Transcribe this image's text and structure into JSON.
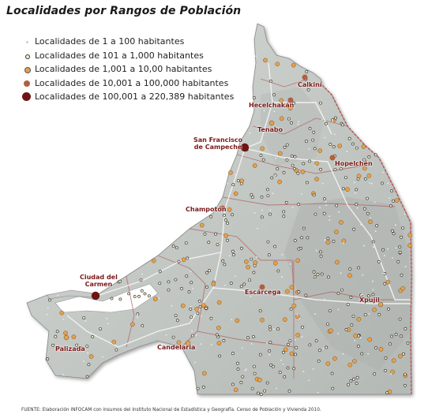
{
  "title": "Localidades por Rangos de Población",
  "legend": [
    {
      "label": "Localidades de 1 a 100 habitantes",
      "color": "#e8e8e8",
      "size": 3
    },
    {
      "label": "Localidades de 101 a 1,000 habitantes",
      "color": "#f2ecd2",
      "size": 4
    },
    {
      "label": "Localidades de 1,001 a 10,00 habitantes",
      "color": "#e8a048",
      "size": 6
    },
    {
      "label": "Localidades de 10,001 a 100,000 habitantes",
      "color": "#b06040",
      "size": 8
    },
    {
      "label": "Localidades de 100,001 a 220,389 habitantes",
      "color": "#6e1414",
      "size": 11
    }
  ],
  "cities": {
    "calkini": "Calkiní",
    "hecelchakan": "Hecelchakán",
    "tenabo": "Tenabo",
    "campeche_line1": "San Francisco",
    "campeche_line2": "de Campeche",
    "hopelchen": "Hopelchén",
    "champoton": "Champotón",
    "carmen_line1": "Ciudad del",
    "carmen_line2": "Carmen",
    "escarcega": "Escárcega",
    "xpujil": "Xpujil",
    "candelaria": "Candelaria",
    "palizada": "Palizada"
  },
  "source": "FUENTE: Elaboración INFOCAM con insumos del Instituto Nacional de Estadística y Geografía. Censo de Población y Vivienda 2010.",
  "colors": {
    "land": "#c8cdc9",
    "land_dark": "#a9afab",
    "border_state": "#c05050",
    "border_muni": "#b07070",
    "roads": "#f4f4f4"
  }
}
